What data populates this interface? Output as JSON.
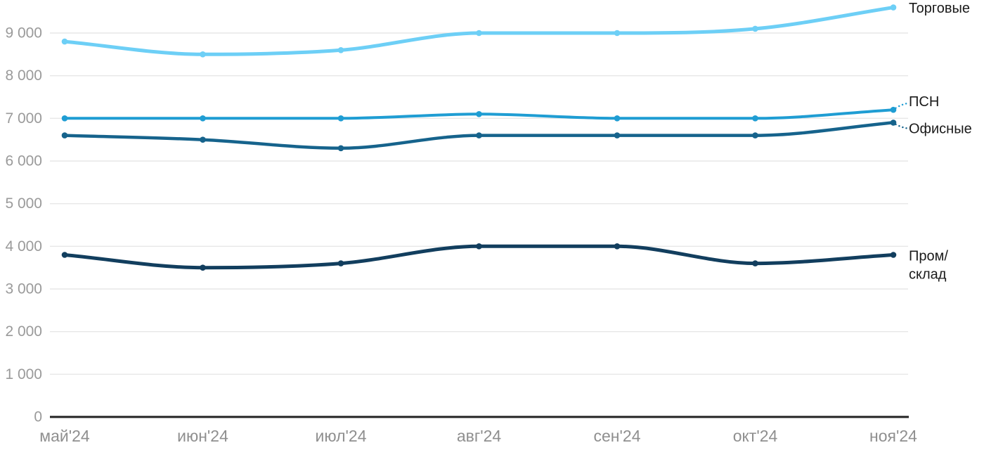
{
  "chart_data": {
    "type": "line",
    "title": "",
    "xlabel": "",
    "ylabel": "",
    "grid": "horizontal-only",
    "legend_position": "inline-right-of-last-point",
    "x_axis": {
      "labels": [
        "май'24",
        "июн'24",
        "июл'24",
        "авг'24",
        "сен'24",
        "окт'24",
        "ноя'24"
      ]
    },
    "y_axis": {
      "min": 0,
      "max_gridline": 9000,
      "tick_step": 1000,
      "tick_labels": [
        "0",
        "1 000",
        "2 000",
        "3 000",
        "4 000",
        "5 000",
        "6 000",
        "7 000",
        "8 000",
        "9 000"
      ]
    },
    "series": [
      {
        "name": "Торговые",
        "slug": "torgovye",
        "color": "#6DCFF6",
        "values": [
          8800,
          8500,
          8600,
          9000,
          9000,
          9100,
          9600
        ],
        "label_lines": [
          "Торговые"
        ],
        "label_dy": 1.5,
        "leader": "none",
        "stroke_width": 5
      },
      {
        "name": "ПСН",
        "slug": "psn",
        "color": "#1F9DD3",
        "values": [
          7000,
          7000,
          7000,
          7100,
          7000,
          7000,
          7200
        ],
        "label_lines": [
          "ПСН"
        ],
        "label_dy": -11,
        "leader": "up",
        "stroke_width": 4
      },
      {
        "name": "Офисные",
        "slug": "ofisnye",
        "color": "#16638C",
        "values": [
          6600,
          6500,
          6300,
          6600,
          6600,
          6600,
          6900
        ],
        "label_lines": [
          "Офисные"
        ],
        "label_dy": 9,
        "leader": "down",
        "stroke_width": 4.5
      },
      {
        "name": "Пром/склад",
        "slug": "prom-sklad",
        "color": "#123E5E",
        "values": [
          3800,
          3500,
          3600,
          4000,
          4000,
          3600,
          3800
        ],
        "label_lines": [
          "Пром/",
          "склад"
        ],
        "label_dy": 2,
        "leader": "none",
        "stroke_width": 5
      }
    ]
  },
  "style": {
    "background": "#FFFFFF",
    "grid_color": "#E7E7E7",
    "axis_color": "#222222",
    "y_tick_color": "#9A9A9A",
    "x_tick_color": "#8F8F8F",
    "series_label_color": "#1A1A1A"
  }
}
